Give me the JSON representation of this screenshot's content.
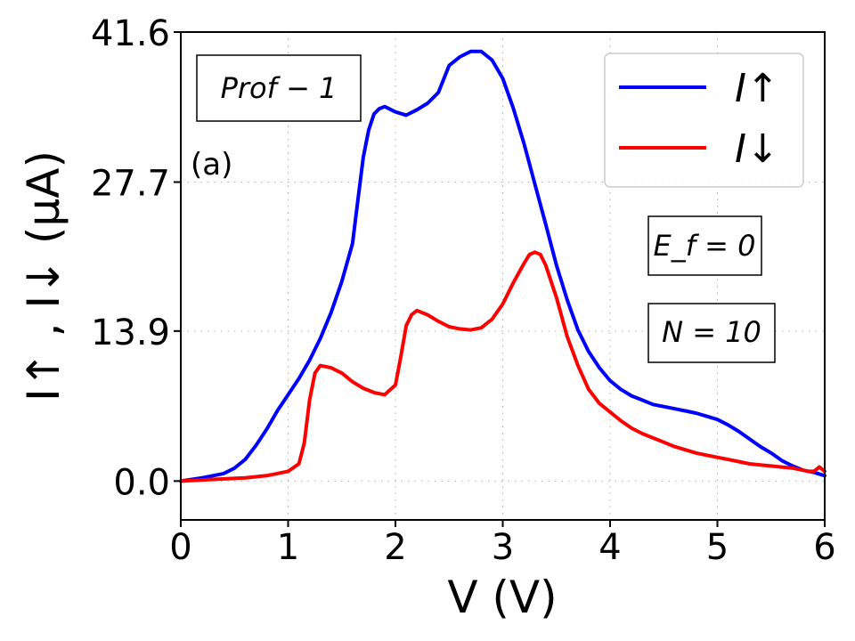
{
  "chart_data": {
    "type": "line",
    "xlabel": "V (V)",
    "ylabel": "I↑ , I↓ (μA)",
    "xlim": [
      0,
      6
    ],
    "ylim": [
      -3.6,
      41.6
    ],
    "xticks": [
      "0",
      "1",
      "2",
      "3",
      "4",
      "5",
      "6"
    ],
    "yticks": [
      "0.0",
      "13.9",
      "27.7",
      "41.6"
    ],
    "grid": true,
    "legend_position": "top-right",
    "annotations": {
      "profile": "Prof − 1",
      "panel": "(a)",
      "fermi": "E_f = 0",
      "n_value": "N = 10"
    },
    "series": [
      {
        "name": "I↑",
        "color": "#0000ff",
        "x": [
          0,
          0.2,
          0.4,
          0.5,
          0.6,
          0.7,
          0.8,
          0.9,
          1.0,
          1.1,
          1.2,
          1.3,
          1.4,
          1.5,
          1.6,
          1.65,
          1.7,
          1.75,
          1.8,
          1.85,
          1.9,
          2.0,
          2.1,
          2.2,
          2.3,
          2.4,
          2.5,
          2.6,
          2.7,
          2.8,
          2.9,
          3.0,
          3.1,
          3.2,
          3.3,
          3.4,
          3.5,
          3.6,
          3.7,
          3.8,
          3.9,
          4.0,
          4.1,
          4.2,
          4.3,
          4.4,
          4.5,
          4.6,
          4.7,
          4.8,
          4.9,
          5.0,
          5.1,
          5.2,
          5.3,
          5.4,
          5.5,
          5.6,
          5.7,
          5.8,
          5.9,
          6.0
        ],
        "values": [
          0.0,
          0.3,
          0.7,
          1.2,
          2.0,
          3.3,
          4.8,
          6.5,
          8.0,
          9.5,
          11.2,
          13.2,
          15.6,
          18.5,
          22.0,
          26.0,
          30.0,
          32.5,
          34.0,
          34.5,
          34.7,
          34.2,
          33.9,
          34.4,
          35.0,
          36.0,
          38.5,
          39.3,
          39.8,
          39.8,
          39.0,
          37.3,
          34.5,
          31.2,
          27.5,
          23.8,
          20.0,
          16.8,
          14.0,
          12.0,
          10.5,
          9.3,
          8.5,
          7.9,
          7.5,
          7.1,
          6.9,
          6.7,
          6.5,
          6.3,
          6.0,
          5.7,
          5.2,
          4.6,
          3.9,
          3.2,
          2.6,
          1.9,
          1.4,
          1.0,
          0.8,
          0.5
        ]
      },
      {
        "name": "I↓",
        "color": "#ff0000",
        "x": [
          0,
          0.3,
          0.6,
          0.8,
          0.9,
          1.0,
          1.1,
          1.15,
          1.2,
          1.25,
          1.3,
          1.4,
          1.5,
          1.6,
          1.7,
          1.8,
          1.9,
          2.0,
          2.05,
          2.1,
          2.15,
          2.2,
          2.3,
          2.4,
          2.5,
          2.6,
          2.7,
          2.8,
          2.9,
          3.0,
          3.1,
          3.2,
          3.25,
          3.3,
          3.35,
          3.4,
          3.5,
          3.6,
          3.7,
          3.8,
          3.9,
          4.0,
          4.1,
          4.2,
          4.3,
          4.4,
          4.5,
          4.6,
          4.7,
          4.8,
          4.9,
          5.0,
          5.1,
          5.2,
          5.3,
          5.4,
          5.5,
          5.6,
          5.7,
          5.8,
          5.85,
          5.9,
          5.95,
          6.0
        ],
        "values": [
          0.0,
          0.15,
          0.3,
          0.5,
          0.7,
          0.9,
          1.6,
          3.5,
          7.5,
          10.0,
          10.7,
          10.5,
          10.0,
          9.2,
          8.6,
          8.2,
          8.0,
          8.9,
          11.5,
          14.4,
          15.4,
          15.8,
          15.4,
          14.8,
          14.3,
          14.1,
          14.0,
          14.2,
          15.0,
          16.4,
          18.4,
          20.2,
          21.0,
          21.2,
          21.0,
          20.0,
          17.0,
          13.4,
          10.7,
          8.5,
          7.2,
          6.4,
          5.6,
          4.9,
          4.4,
          4.0,
          3.6,
          3.2,
          2.9,
          2.6,
          2.4,
          2.2,
          2.0,
          1.8,
          1.6,
          1.5,
          1.4,
          1.3,
          1.2,
          1.0,
          0.9,
          0.9,
          1.3,
          0.9
        ]
      }
    ]
  }
}
